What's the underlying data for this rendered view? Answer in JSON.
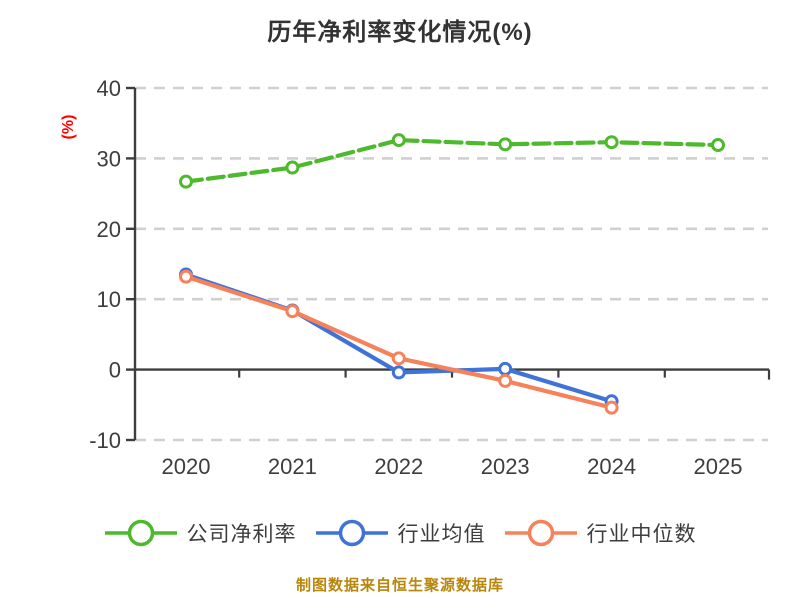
{
  "title": "历年净利率变化情况(%)",
  "y_axis_label": "(%)",
  "footer": "制图数据来自恒生聚源数据库",
  "colors": {
    "company": "#4db92d",
    "industry_avg": "#3f73d8",
    "industry_median": "#f5825b",
    "grid": "#d0d0d0",
    "axis": "#3d3d3d",
    "tick_label": "#3d3d3d",
    "title": "#333333",
    "ylabel": "#ff0000",
    "footer": "#b8860b"
  },
  "chart_data": {
    "type": "line",
    "x": [
      2020,
      2021,
      2022,
      2023,
      2024,
      2025
    ],
    "series": [
      {
        "name": "公司净利率",
        "color_key": "company",
        "line_style": "dashed",
        "values": [
          26.7,
          28.7,
          32.6,
          32.0,
          32.3,
          31.9
        ]
      },
      {
        "name": "行业均值",
        "color_key": "industry_avg",
        "line_style": "solid",
        "values": [
          13.5,
          8.4,
          -0.4,
          0.1,
          -4.5,
          null
        ]
      },
      {
        "name": "行业中位数",
        "color_key": "industry_median",
        "line_style": "solid",
        "values": [
          13.2,
          8.3,
          1.6,
          -1.6,
          -5.4,
          null
        ]
      }
    ],
    "ylim": [
      -10,
      40
    ],
    "yticks": [
      40,
      30,
      20,
      10,
      0,
      -10
    ],
    "grid": "horizontal-dashed",
    "legend_position": "bottom",
    "marker": "open-circle"
  }
}
